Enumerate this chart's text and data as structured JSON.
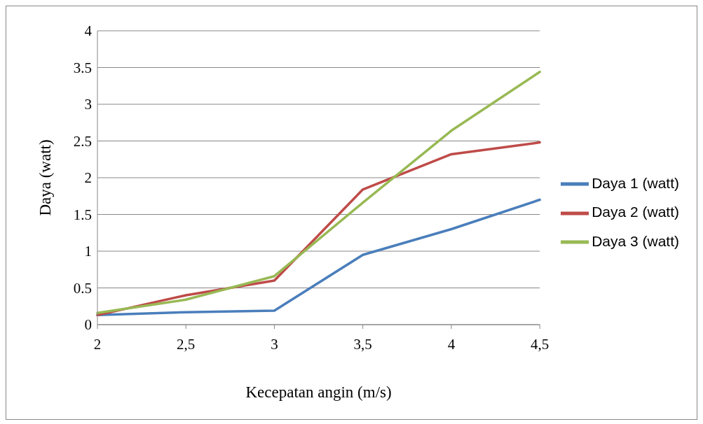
{
  "chart_data": {
    "type": "line",
    "xlabel": "Kecepatan angin (m/s)",
    "ylabel": "Daya (watt)",
    "categories": [
      "2",
      "2,5",
      "3",
      "3,5",
      "4",
      "4,5"
    ],
    "series": [
      {
        "name": "Daya 1 (watt)",
        "color": "#4a7ebb",
        "values": [
          0.13,
          0.17,
          0.19,
          0.95,
          1.3,
          1.7
        ]
      },
      {
        "name": "Daya 2 (watt)",
        "color": "#be4b48",
        "values": [
          0.13,
          0.4,
          0.6,
          1.84,
          2.32,
          2.48
        ]
      },
      {
        "name": "Daya 3 (watt)",
        "color": "#98b954",
        "values": [
          0.16,
          0.34,
          0.66,
          1.66,
          2.64,
          3.44
        ]
      }
    ],
    "ylim": [
      0,
      4
    ],
    "yticks": [
      0,
      0.5,
      1,
      1.5,
      2,
      2.5,
      3,
      3.5,
      4
    ],
    "grid": "y",
    "legend": "right",
    "marker": "none",
    "line_style": "solid"
  }
}
